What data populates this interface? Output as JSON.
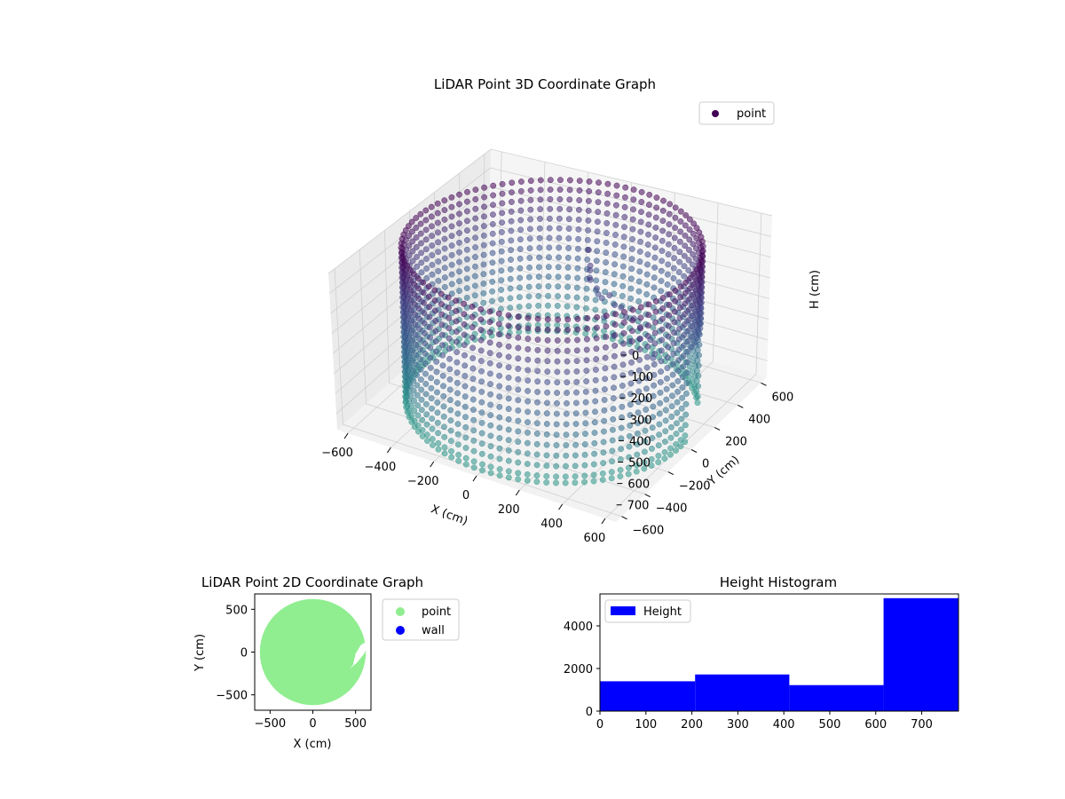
{
  "chart_data": [
    {
      "type": "scatter3d",
      "title": "LiDAR Point 3D Coordinate Graph",
      "xlabel": "X (cm)",
      "ylabel": "Y (cm)",
      "zlabel": "H (cm)",
      "xlim": [
        -650,
        650
      ],
      "ylim": [
        -650,
        650
      ],
      "zlim": [
        0,
        780
      ],
      "zaxis_inverted": true,
      "xticks": [
        -600,
        -400,
        -200,
        0,
        200,
        400,
        600
      ],
      "yticks": [
        -600,
        -400,
        -200,
        0,
        200,
        400,
        600
      ],
      "zticks": [
        0,
        100,
        200,
        300,
        400,
        500,
        600,
        700
      ],
      "legend": [
        "point"
      ],
      "legend_loc": "top-right",
      "colormap": "viridis",
      "colors": {
        "top": "#440154",
        "mid": "#3b528b",
        "bottom": "#5ec962"
      },
      "grid": true,
      "series": [
        {
          "name": "point",
          "shape": "cylindrical wall",
          "radius": 600,
          "height_range": [
            0,
            780
          ],
          "ring_sample_heights": [
            0,
            50,
            100,
            150,
            200,
            250,
            300,
            350,
            400,
            450,
            500,
            550,
            600,
            650,
            700,
            750,
            780
          ],
          "points_per_ring": 96,
          "interior_points": [
            {
              "x": 30,
              "y": 260,
              "h": 210
            },
            {
              "x": 40,
              "y": 240,
              "h": 220
            },
            {
              "x": 60,
              "y": 200,
              "h": 230
            },
            {
              "x": 80,
              "y": 170,
              "h": 220
            },
            {
              "x": 120,
              "y": 150,
              "h": 240
            },
            {
              "x": 160,
              "y": 120,
              "h": 260
            },
            {
              "x": 200,
              "y": 110,
              "h": 230
            },
            {
              "x": 240,
              "y": 80,
              "h": 250
            },
            {
              "x": 280,
              "y": 60,
              "h": 240
            },
            {
              "x": 320,
              "y": 30,
              "h": 260
            },
            {
              "x": 360,
              "y": 20,
              "h": 250
            },
            {
              "x": 400,
              "y": 0,
              "h": 270
            },
            {
              "x": 0,
              "y": 300,
              "h": 160
            },
            {
              "x": 100,
              "y": 200,
              "h": 300
            },
            {
              "x": 150,
              "y": 160,
              "h": 380
            },
            {
              "x": 200,
              "y": 150,
              "h": 450
            },
            {
              "x": 300,
              "y": 100,
              "h": 420
            },
            {
              "x": 420,
              "y": -40,
              "h": 300
            },
            {
              "x": 500,
              "y": -100,
              "h": 250
            },
            {
              "x": 540,
              "y": -150,
              "h": 300
            }
          ]
        }
      ]
    },
    {
      "type": "scatter",
      "title": "LiDAR Point 2D Coordinate Graph",
      "xlabel": "X (cm)",
      "ylabel": "Y (cm)",
      "xlim": [
        -680,
        680
      ],
      "ylim": [
        -680,
        680
      ],
      "xticks": [
        -500,
        0,
        500
      ],
      "yticks": [
        -500,
        0,
        500
      ],
      "legend": [
        "point",
        "wall"
      ],
      "legend_loc": "outside-right",
      "colors": {
        "point": "#90ee90",
        "wall": "#0000ff"
      },
      "series": [
        {
          "name": "point",
          "shape": "filled disk",
          "radius": 620,
          "gap_points": [
            {
              "x": 620,
              "y": 120
            },
            {
              "x": 560,
              "y": 80
            },
            {
              "x": 500,
              "y": -20
            },
            {
              "x": 470,
              "y": -150
            },
            {
              "x": 430,
              "y": -200
            },
            {
              "x": 520,
              "y": -120
            },
            {
              "x": 600,
              "y": -20
            },
            {
              "x": 640,
              "y": 60
            }
          ]
        },
        {
          "name": "wall",
          "points": []
        }
      ]
    },
    {
      "type": "histogram",
      "title": "Height Histogram",
      "xlabel": "",
      "ylabel": "",
      "xlim": [
        0,
        780
      ],
      "ylim": [
        0,
        5500
      ],
      "xticks": [
        0,
        100,
        200,
        300,
        400,
        500,
        600,
        700
      ],
      "yticks": [
        0,
        2000,
        4000
      ],
      "legend": [
        "Height"
      ],
      "legend_loc": "upper-left",
      "colors": {
        "bar": "#0000ff"
      },
      "bins": [
        0,
        207,
        412,
        617,
        780
      ],
      "values": [
        1400,
        1720,
        1220,
        5300
      ]
    }
  ]
}
